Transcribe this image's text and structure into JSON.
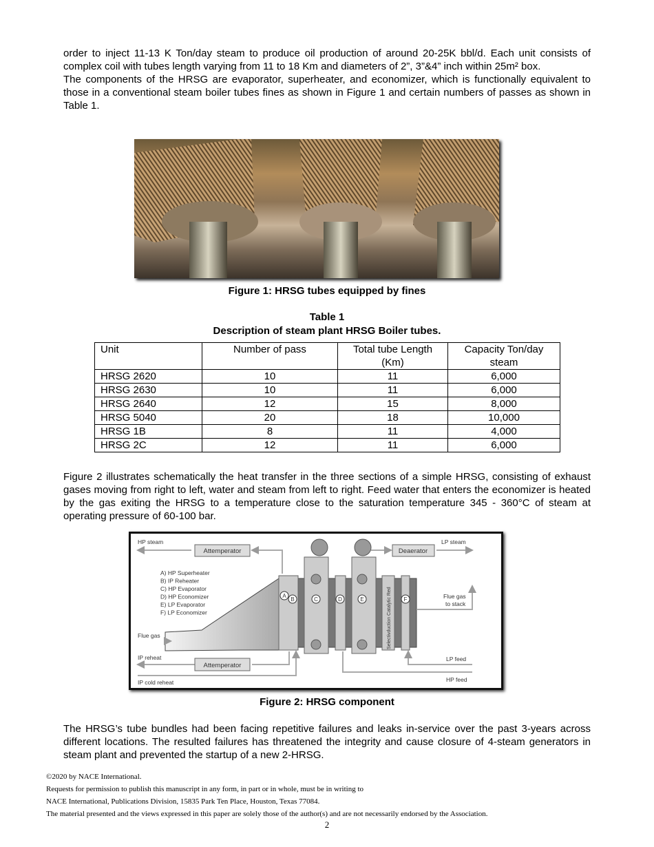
{
  "intro": {
    "p1": "order to inject 11-13 K Ton/day steam to produce oil production of around 20-25K bbl/d. Each unit consists of complex coil with tubes length varying from 11 to 18 Km and diameters of 2”, 3”&4” inch within 25m² box.",
    "p2": "The components of the HRSG are evaporator, superheater, and economizer, which is functionally equivalent to those in a conventional steam boiler tubes fines as shown in Figure 1 and certain numbers of passes as shown in Table 1."
  },
  "figure1": {
    "caption": "Figure 1: HRSG tubes equipped by fines"
  },
  "table1": {
    "title": "Table 1",
    "description": "Description of steam plant HRSG Boiler tubes.",
    "headers": [
      "Unit",
      "Number of pass",
      "Total tube Length (Km)",
      "Capacity Ton/day steam"
    ],
    "rows": [
      [
        "HRSG 2620",
        "10",
        "11",
        "6,000"
      ],
      [
        "HRSG 2630",
        "10",
        "11",
        "6,000"
      ],
      [
        "HRSG 2640",
        "12",
        "15",
        "8,000"
      ],
      [
        "HRSG 5040",
        "20",
        "18",
        "10,000"
      ],
      [
        "HRSG 1B",
        "8",
        "11",
        "4,000"
      ],
      [
        "HRSG 2C",
        "12",
        "11",
        "6,000"
      ]
    ]
  },
  "body2": "Figure 2 illustrates schematically the heat transfer in the three sections of a simple HRSG, consisting of exhaust gases moving from right to left, water and steam from left to right. Feed water that enters the economizer is heated by the gas exiting the HRSG to a temperature close to the saturation temperature 345 - 360°C of steam at operating pressure of 60-100 bar.",
  "figure2": {
    "caption": "Figure 2: HRSG component",
    "labels": {
      "hp_steam": "HP steam",
      "lp_steam": "LP steam",
      "attemperator_top": "Attemperator",
      "deaerator": "Deaerator",
      "flue_gas": "Flue gas",
      "flue_stack_1": "Flue gas",
      "flue_stack_2": "to stack",
      "ip_reheat": "IP reheat",
      "attemperator_bottom": "Attemperator",
      "ip_cold_reheat": "IP cold reheat",
      "lp_feed": "LP feed",
      "hp_feed": "HP feed",
      "scr": "Selectivduction Catalytic Red"
    },
    "legend": [
      "A) HP Superheater",
      "B) IP Reheater",
      "C) HP Evaporator",
      "D) HP Economizer",
      "E) LP Evaporator",
      "F) LP Economizer"
    ],
    "markers": [
      "A",
      "B",
      "C",
      "D",
      "E",
      "F"
    ]
  },
  "body3": "The HRSG’s tube bundles had been facing repetitive failures and leaks in-service over the past 3-years across different locations. The resulted failures has threatened the integrity and cause closure of 4-steam generators in steam plant and prevented the startup of a new 2-HRSG.",
  "footer": [
    "©2020 by NACE International.",
    "Requests for permission to publish this manuscript in any form, in part or in whole, must be in writing to",
    "NACE International, Publications Division, 15835 Park Ten Place, Houston, Texas 77084.",
    "The material presented and the views expressed in this paper are solely those of the author(s) and are not necessarily endorsed by the Association."
  ],
  "page_number": "2"
}
